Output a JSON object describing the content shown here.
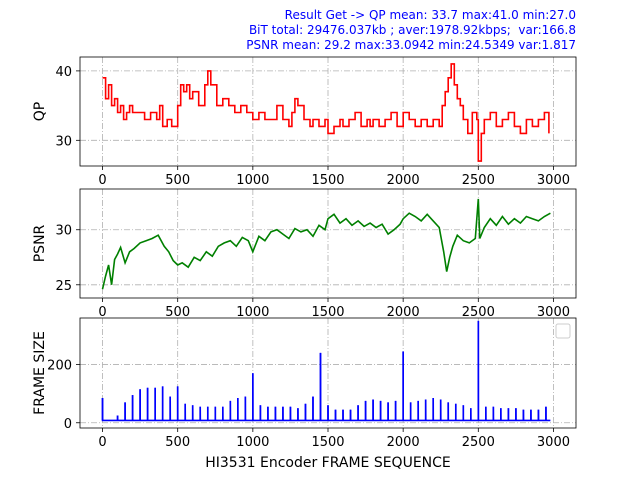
{
  "header": {
    "line1": "Result Get -> QP mean: 33.7 max:41.0 min:27.0",
    "line2": "BiT total: 29476.037kb ; aver:1978.92kbps;  var:166.8",
    "line3": "PSNR mean: 29.2 max:33.0942 min:24.5349 var:1.817",
    "color": "#0000ff"
  },
  "chart_data": [
    {
      "type": "line",
      "ylabel": "QP",
      "xlim": [
        -150,
        3150
      ],
      "ylim": [
        26.3,
        42.0
      ],
      "xticks": [
        0,
        500,
        1000,
        1500,
        2000,
        2500,
        3000
      ],
      "yticks": [
        30,
        40
      ],
      "grid": true,
      "color": "#ff0000",
      "series": [
        {
          "x": [
            0,
            20,
            40,
            60,
            80,
            100,
            120,
            140,
            160,
            180,
            200,
            240,
            280,
            320,
            360,
            380,
            400,
            430,
            460,
            500,
            520,
            540,
            560,
            580,
            600,
            640,
            680,
            700,
            720,
            760,
            800,
            840,
            880,
            920,
            960,
            1000,
            1040,
            1080,
            1120,
            1160,
            1200,
            1240,
            1260,
            1280,
            1300,
            1340,
            1380,
            1400,
            1440,
            1480,
            1500,
            1540,
            1580,
            1600,
            1640,
            1680,
            1720,
            1760,
            1780,
            1800,
            1840,
            1880,
            1920,
            1960,
            2000,
            2040,
            2080,
            2120,
            2160,
            2200,
            2240,
            2260,
            2280,
            2300,
            2320,
            2340,
            2360,
            2380,
            2400,
            2430,
            2460,
            2490,
            2500,
            2520,
            2540,
            2580,
            2620,
            2660,
            2700,
            2740,
            2780,
            2820,
            2860,
            2900,
            2940,
            2970
          ],
          "y": [
            39,
            36,
            38,
            35,
            36,
            34,
            35,
            33,
            34,
            35,
            34,
            34,
            33,
            34,
            33,
            35,
            32,
            33,
            32,
            35,
            38,
            37,
            38,
            36,
            37,
            35,
            38,
            40,
            38,
            35,
            36,
            35,
            34,
            35,
            34,
            33,
            34,
            33,
            33,
            35,
            33,
            32,
            34,
            36,
            35,
            33,
            32,
            33,
            32,
            33,
            31,
            32,
            33,
            32,
            33,
            34,
            32,
            33,
            32,
            33,
            32,
            33,
            34,
            32,
            34,
            33,
            32,
            33,
            32,
            33,
            32,
            35,
            37,
            39,
            41,
            38,
            36,
            35,
            33,
            31,
            34,
            33,
            27,
            31,
            33,
            34,
            32,
            33,
            34,
            32,
            31,
            33,
            32,
            33,
            34,
            31
          ]
        }
      ]
    },
    {
      "type": "line",
      "ylabel": "PSNR",
      "xlim": [
        -150,
        3150
      ],
      "ylim": [
        23.8,
        33.7
      ],
      "xticks": [
        0,
        500,
        1000,
        1500,
        2000,
        2500,
        3000
      ],
      "yticks": [
        25,
        30
      ],
      "grid": true,
      "color": "#008000",
      "series": [
        {
          "x": [
            0,
            20,
            40,
            60,
            80,
            100,
            120,
            150,
            180,
            210,
            250,
            290,
            330,
            370,
            410,
            440,
            470,
            500,
            530,
            570,
            610,
            650,
            690,
            730,
            770,
            810,
            850,
            890,
            930,
            970,
            1000,
            1040,
            1080,
            1120,
            1160,
            1200,
            1240,
            1280,
            1320,
            1360,
            1400,
            1440,
            1480,
            1500,
            1540,
            1580,
            1620,
            1660,
            1700,
            1740,
            1780,
            1820,
            1860,
            1900,
            1940,
            1980,
            2000,
            2040,
            2080,
            2120,
            2160,
            2200,
            2240,
            2270,
            2290,
            2310,
            2330,
            2360,
            2400,
            2440,
            2480,
            2500,
            2510,
            2540,
            2580,
            2620,
            2660,
            2700,
            2740,
            2780,
            2820,
            2860,
            2900,
            2940,
            2980
          ],
          "y": [
            24.6,
            25.8,
            26.8,
            25.0,
            27.3,
            27.8,
            28.4,
            27.0,
            28.0,
            28.3,
            28.8,
            29.0,
            29.2,
            29.5,
            28.5,
            28.0,
            27.2,
            26.8,
            27.0,
            26.6,
            27.5,
            27.2,
            28.0,
            27.6,
            28.5,
            28.8,
            29.0,
            28.5,
            29.3,
            29.0,
            28.0,
            29.4,
            29.0,
            29.8,
            30.0,
            29.6,
            29.2,
            30.1,
            29.8,
            30.0,
            29.4,
            30.4,
            30.0,
            31.0,
            31.4,
            30.6,
            31.0,
            30.4,
            30.8,
            30.3,
            30.6,
            30.2,
            30.5,
            29.6,
            30.0,
            30.5,
            31.0,
            31.5,
            31.2,
            30.8,
            31.4,
            30.8,
            30.2,
            28.0,
            26.2,
            27.5,
            28.5,
            29.5,
            29.0,
            28.8,
            29.2,
            32.8,
            29.2,
            30.2,
            31.0,
            30.4,
            31.2,
            30.5,
            31.0,
            30.6,
            31.2,
            31.0,
            30.8,
            31.2,
            31.5
          ]
        }
      ]
    },
    {
      "type": "line",
      "ylabel": "FRAME SIZE",
      "xlabel": "HI3531 Encoder FRAME SEQUENCE",
      "xlim": [
        -150,
        3150
      ],
      "ylim": [
        -18,
        360
      ],
      "xticks": [
        0,
        500,
        1000,
        1500,
        2000,
        2500,
        3000
      ],
      "yticks": [
        0,
        200
      ],
      "grid": true,
      "color": "#0000ff",
      "legend": "top-right",
      "baseline": 8,
      "spikes": {
        "x": [
          0,
          100,
          150,
          200,
          250,
          300,
          350,
          400,
          450,
          500,
          550,
          600,
          650,
          700,
          750,
          800,
          850,
          900,
          950,
          1000,
          1050,
          1100,
          1150,
          1200,
          1250,
          1300,
          1350,
          1400,
          1450,
          1500,
          1550,
          1600,
          1650,
          1700,
          1750,
          1800,
          1850,
          1900,
          1950,
          2000,
          2050,
          2100,
          2150,
          2200,
          2250,
          2300,
          2350,
          2400,
          2450,
          2500,
          2550,
          2600,
          2650,
          2700,
          2750,
          2800,
          2850,
          2900,
          2950
        ],
        "y": [
          85,
          25,
          70,
          95,
          115,
          120,
          120,
          125,
          90,
          125,
          65,
          60,
          55,
          55,
          55,
          55,
          75,
          85,
          90,
          170,
          60,
          55,
          55,
          55,
          55,
          50,
          65,
          90,
          240,
          60,
          45,
          45,
          45,
          60,
          75,
          80,
          75,
          70,
          75,
          245,
          70,
          75,
          80,
          85,
          80,
          70,
          65,
          60,
          50,
          350,
          55,
          55,
          50,
          50,
          50,
          45,
          45,
          45,
          55
        ]
      }
    }
  ]
}
